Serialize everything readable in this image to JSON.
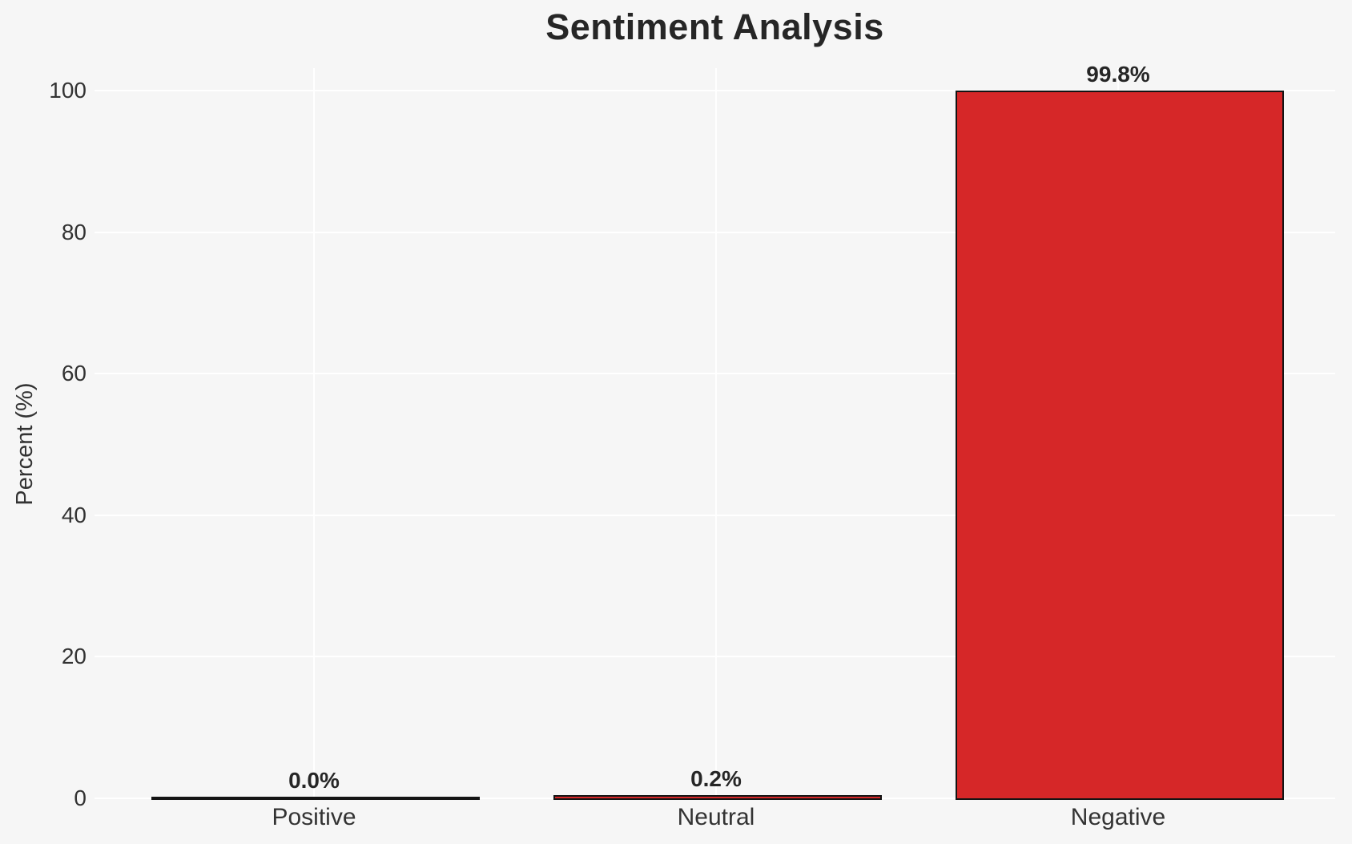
{
  "chart_data": {
    "type": "bar",
    "title": "Sentiment Analysis",
    "xlabel": "",
    "ylabel": "Percent (%)",
    "categories": [
      "Positive",
      "Neutral",
      "Negative"
    ],
    "values": [
      0.0,
      0.2,
      99.8
    ],
    "bar_labels": [
      "0.0%",
      "0.2%",
      "99.8%"
    ],
    "yticks": [
      0,
      20,
      40,
      60,
      80,
      100
    ],
    "ylim": [
      0,
      103
    ],
    "grid": true,
    "legend_position": "none",
    "colors": {
      "bar_fill": "#d62728",
      "bar_edge": "#141414",
      "background": "#f6f6f6",
      "gridline": "#ffffff",
      "tick_text": "#333333",
      "title_text": "#262626"
    }
  }
}
